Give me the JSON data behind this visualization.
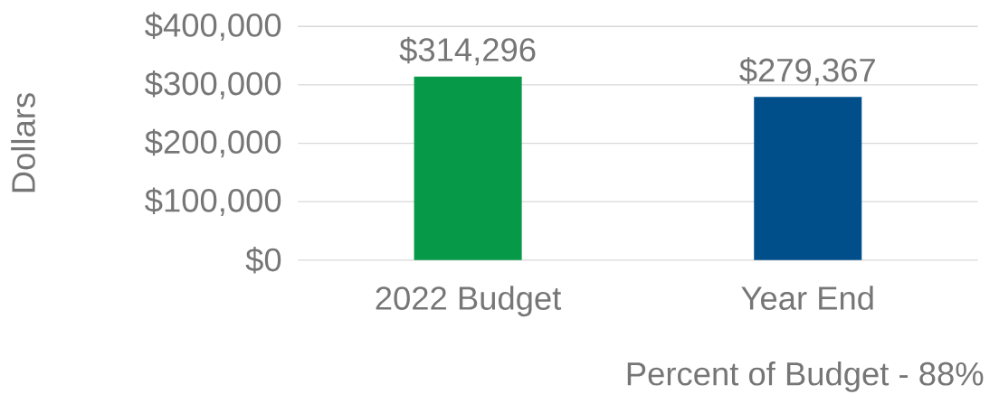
{
  "chart_data": {
    "type": "bar",
    "ylabel": "Dollars",
    "categories": [
      "2022 Budget",
      "Year End"
    ],
    "values": [
      314296,
      279367
    ],
    "colors": [
      "#069a48",
      "#004f8a"
    ],
    "value_labels": [
      "$314,296",
      "$279,367"
    ],
    "ylim": [
      0,
      400000
    ],
    "yticks": [
      {
        "value": 0,
        "label": "$0"
      },
      {
        "value": 100000,
        "label": "$100,000"
      },
      {
        "value": 200000,
        "label": "$200,000"
      },
      {
        "value": 300000,
        "label": "$300,000"
      },
      {
        "value": 400000,
        "label": "$400,000"
      }
    ],
    "grid": "y",
    "annotations": [
      "Percent of Budget - 88%"
    ]
  }
}
